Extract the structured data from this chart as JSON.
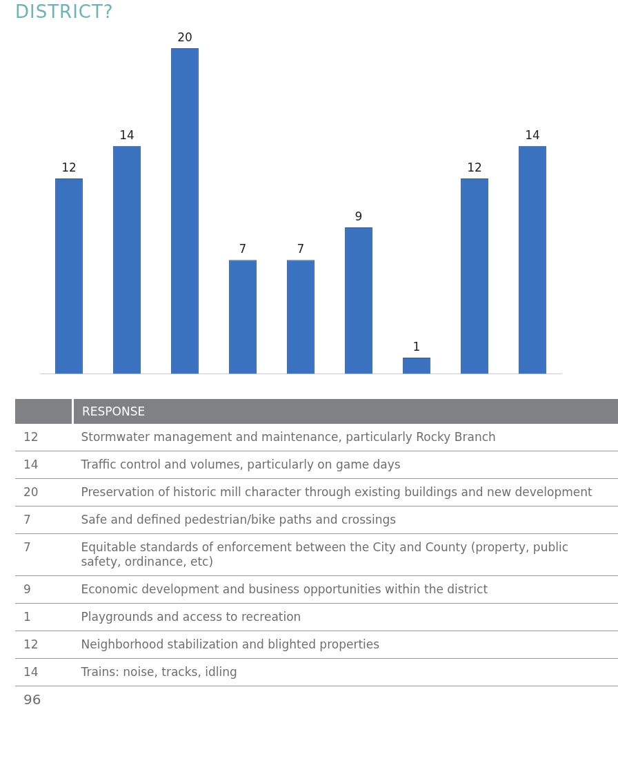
{
  "chart_data": {
    "type": "bar",
    "title": "DISTRICT?",
    "categories": [
      null,
      null,
      null,
      null,
      null,
      null,
      null,
      null,
      null
    ],
    "values": [
      12,
      14,
      20,
      7,
      7,
      9,
      1,
      12,
      14
    ],
    "color": "#3a72c0",
    "data_labels": true,
    "grid": false,
    "legend": false,
    "annotations": [
      "RESPONSE",
      "12",
      "Stormwater management and maintenance, particularly Rocky Branch",
      "14",
      "Traffic control and volumes, particularly on game days",
      "20",
      "Preservation of historic mill character through existing buildings and new development",
      "7",
      "Safe and defined pedestrian/bike paths and crossings",
      "7",
      "Equitable standards of enforcement between the City and County (property, public safety, ordinance, etc)",
      "9",
      "Economic development and business opportunities within the district",
      "1",
      "Playgrounds and access to recreation",
      "12",
      "Neighborhood stabilization and blighted properties",
      "14",
      "Trains: noise, tracks, idling",
      "96"
    ]
  }
}
